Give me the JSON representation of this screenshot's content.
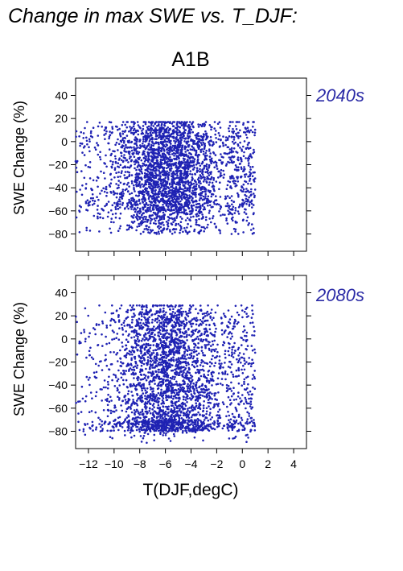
{
  "title": "Change in max SWE vs. T_DJF:",
  "scenario": "A1B",
  "xlabel": "T(DJF,degC)",
  "ylabel": "SWE Change (%)",
  "colors": {
    "points": "#1f22b3",
    "label": "#2a2aa6",
    "text": "#000000"
  },
  "chart_data": [
    {
      "type": "scatter",
      "panel_label": "2040s",
      "xlabel": "T(DJF,degC)",
      "ylabel": "SWE Change (%)",
      "xlim": [
        -13,
        5
      ],
      "ylim": [
        -95,
        55
      ],
      "xticks": [
        -12,
        -10,
        -8,
        -6,
        -4,
        -2,
        0,
        2,
        4
      ],
      "xtick_labels": [
        "−12",
        "−10",
        "−8",
        "−6",
        "−4",
        "−2",
        "0",
        "2",
        "4"
      ],
      "yticks": [
        40,
        20,
        0,
        -20,
        -40,
        -60,
        -80
      ],
      "ytick_labels": [
        "40",
        "20",
        "0",
        "−20",
        "−40",
        "−60",
        "−80"
      ],
      "point_count_estimate": 3000,
      "x_range_observed": [
        -13,
        1
      ],
      "y_range_observed": [
        -90,
        17
      ],
      "bulk_y_range": [
        -60,
        15
      ]
    },
    {
      "type": "scatter",
      "panel_label": "2080s",
      "xlabel": "T(DJF,degC)",
      "ylabel": "SWE Change (%)",
      "xlim": [
        -13,
        5
      ],
      "ylim": [
        -95,
        55
      ],
      "xticks": [
        -12,
        -10,
        -8,
        -6,
        -4,
        -2,
        0,
        2,
        4
      ],
      "xtick_labels": [
        "−12",
        "−10",
        "−8",
        "−6",
        "−4",
        "−2",
        "0",
        "2",
        "4"
      ],
      "yticks": [
        40,
        20,
        0,
        -20,
        -40,
        -60,
        -80
      ],
      "ytick_labels": [
        "40",
        "20",
        "0",
        "−20",
        "−40",
        "−60",
        "−80"
      ],
      "point_count_estimate": 3000,
      "x_range_observed": [
        -13,
        1
      ],
      "y_range_observed": [
        -90,
        29
      ],
      "bulk_y_range": [
        -80,
        25
      ]
    }
  ]
}
